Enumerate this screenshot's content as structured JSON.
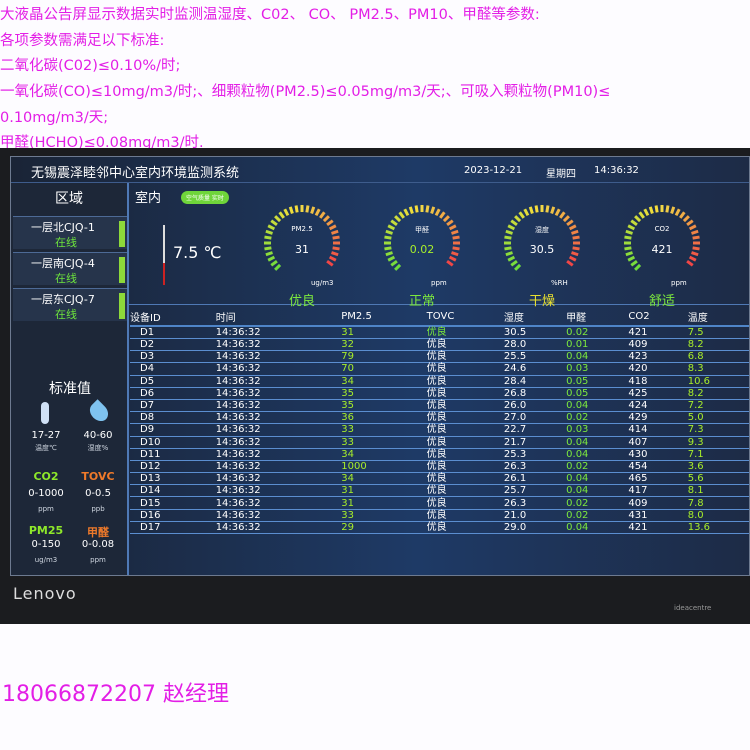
{
  "notes": [
    "大液晶公告屏显示数据实时监测温湿度、C02、 CO、 PM2.5、PM10、甲醛等参数:",
    "各项参数需满足以下标准:",
    "二氧化碳(C02)≤0.10%/时;",
    "一氧化碳(CO)≤10mg/m3/时;、细颗粒物(PM2.5)≤0.05mg/m3/天;、可吸入颗粒物(PM10)≤",
    "0.10mg/m3/天;",
    "甲醛(HCHO)≤0.08mg/m3/时."
  ],
  "header": {
    "title": "无锡震泽睦邻中心室内环境监测系统",
    "date": "2023-12-21",
    "weekday": "星期四",
    "time": "14:36:32"
  },
  "sidebar": {
    "heading": "区域",
    "zones": [
      {
        "name": "一层北CJQ-1",
        "status": "在线"
      },
      {
        "name": "一层南CJQ-4",
        "status": "在线"
      },
      {
        "name": "一层东CJQ-7",
        "status": "在线"
      }
    ],
    "standards_heading": "标准值",
    "temp_range": "17-27",
    "temp_label": "温度℃",
    "hum_range": "40-60",
    "hum_label": "湿度%",
    "co2": {
      "key": "CO2",
      "range": "0-1000",
      "unit": "ppm"
    },
    "tovc": {
      "key": "TOVC",
      "range": "0-0.5",
      "unit": "ppb"
    },
    "pm25": {
      "key": "PM25",
      "range": "0-150",
      "unit": "ug/m3"
    },
    "hcho": {
      "key": "甲醛",
      "range": "0-0.08",
      "unit": "ppm"
    }
  },
  "room": {
    "label": "室内",
    "badge": "空气质量 实时",
    "temperature": "7.5 ℃"
  },
  "gauges": [
    {
      "label": "PM2.5",
      "value": "31",
      "unit": "ug/m3",
      "status": "优良"
    },
    {
      "label": "甲醛",
      "value": "0.02",
      "unit": "ppm",
      "status": "正常"
    },
    {
      "label": "湿度",
      "value": "30.5",
      "unit": "%RH",
      "status": "干燥"
    },
    {
      "label": "CO2",
      "value": "421",
      "unit": "ppm",
      "status": "舒适"
    }
  ],
  "table": {
    "columns": [
      "设备ID",
      "时间",
      "PM2.5",
      "TOVC",
      "湿度",
      "甲醛",
      "CO2",
      "温度"
    ],
    "rows": [
      [
        "D1",
        "14:36:32",
        "31",
        "优良",
        "30.5",
        "0.02",
        "421",
        "7.5"
      ],
      [
        "D2",
        "14:36:32",
        "32",
        "优良",
        "28.0",
        "0.01",
        "409",
        "8.2"
      ],
      [
        "D3",
        "14:36:32",
        "79",
        "优良",
        "25.5",
        "0.04",
        "423",
        "6.8"
      ],
      [
        "D4",
        "14:36:32",
        "70",
        "优良",
        "24.6",
        "0.03",
        "420",
        "8.3"
      ],
      [
        "D5",
        "14:36:32",
        "34",
        "优良",
        "28.4",
        "0.05",
        "418",
        "10.6"
      ],
      [
        "D6",
        "14:36:32",
        "35",
        "优良",
        "26.8",
        "0.05",
        "425",
        "8.2"
      ],
      [
        "D7",
        "14:36:32",
        "35",
        "优良",
        "26.0",
        "0.04",
        "424",
        "7.2"
      ],
      [
        "D8",
        "14:36:32",
        "36",
        "优良",
        "27.0",
        "0.02",
        "429",
        "5.0"
      ],
      [
        "D9",
        "14:36:32",
        "33",
        "优良",
        "22.7",
        "0.03",
        "414",
        "7.3"
      ],
      [
        "D10",
        "14:36:32",
        "33",
        "优良",
        "21.7",
        "0.04",
        "407",
        "9.3"
      ],
      [
        "D11",
        "14:36:32",
        "34",
        "优良",
        "25.3",
        "0.04",
        "430",
        "7.1"
      ],
      [
        "D12",
        "14:36:32",
        "1000",
        "优良",
        "26.3",
        "0.02",
        "454",
        "3.6"
      ],
      [
        "D13",
        "14:36:32",
        "34",
        "优良",
        "26.1",
        "0.04",
        "465",
        "5.6"
      ],
      [
        "D14",
        "14:36:32",
        "31",
        "优良",
        "25.7",
        "0.04",
        "417",
        "8.1"
      ],
      [
        "D15",
        "14:36:32",
        "31",
        "优良",
        "26.3",
        "0.02",
        "409",
        "7.8"
      ],
      [
        "D16",
        "14:36:32",
        "33",
        "优良",
        "21.0",
        "0.02",
        "431",
        "8.0"
      ],
      [
        "D17",
        "14:36:32",
        "29",
        "优良",
        "29.0",
        "0.04",
        "421",
        "13.6"
      ]
    ]
  },
  "bezel": {
    "brand": "Lenovo",
    "model": "ideacentre"
  },
  "contact": "18066872207 赵经理"
}
